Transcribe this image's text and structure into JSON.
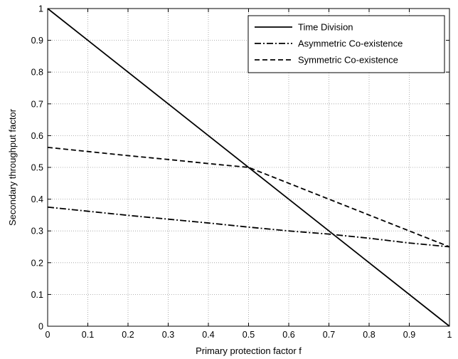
{
  "chart_data": {
    "type": "line",
    "title": "",
    "xlabel": "Primary protection factor f",
    "ylabel": "Secondary throughput factor",
    "xlim": [
      0,
      1
    ],
    "ylim": [
      0,
      1
    ],
    "xticks": [
      "0",
      "0.1",
      "0.2",
      "0.3",
      "0.4",
      "0.5",
      "0.6",
      "0.7",
      "0.8",
      "0.9",
      "1"
    ],
    "yticks": [
      "0",
      "0.1",
      "0.2",
      "0.3",
      "0.4",
      "0.5",
      "0.6",
      "0.7",
      "0.8",
      "0.9",
      "1"
    ],
    "grid": true,
    "legend_position": "top-right",
    "series": [
      {
        "name": "Time Division",
        "line_style": "solid",
        "color": "#000000",
        "x": [
          0,
          1
        ],
        "y": [
          1,
          0
        ]
      },
      {
        "name": "Asymmetric Co-existence",
        "line_style": "dash-dot",
        "color": "#000000",
        "x": [
          0,
          0.1,
          0.2,
          0.3,
          0.4,
          0.5,
          0.6,
          0.7,
          0.8,
          0.9,
          1.0
        ],
        "y": [
          0.375,
          0.362,
          0.349,
          0.337,
          0.325,
          0.312,
          0.3,
          0.29,
          0.277,
          0.262,
          0.25
        ]
      },
      {
        "name": "Symmetric Co-existence",
        "line_style": "dashed",
        "color": "#000000",
        "x": [
          0,
          0.1,
          0.2,
          0.3,
          0.4,
          0.5,
          0.6,
          0.7,
          0.8,
          0.9,
          1.0
        ],
        "y": [
          0.563,
          0.55,
          0.537,
          0.525,
          0.512,
          0.5,
          0.45,
          0.4,
          0.35,
          0.3,
          0.25
        ]
      }
    ]
  }
}
